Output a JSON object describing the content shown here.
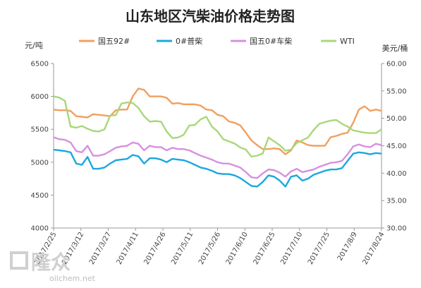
{
  "chart_data": {
    "type": "line",
    "title": "山东地区汽柴油价格走势图",
    "y_left_label": "元/吨",
    "y_right_label": "美元/桶",
    "y_left_range": [
      4000,
      6500
    ],
    "y_left_ticks": [
      "6500",
      "6000",
      "5500",
      "5000",
      "4500",
      "4000"
    ],
    "y_right_range": [
      30,
      60
    ],
    "y_right_ticks": [
      "60.00",
      "55.00",
      "50.00",
      "45.00",
      "40.00",
      "35.00",
      "30.00"
    ],
    "x_ticks": [
      "2017/2/25",
      "2017/3/12",
      "2017/3/27",
      "2017/4/11",
      "2017/4/26",
      "2017/5/11",
      "2017/5/26",
      "2017/6/10",
      "2017/6/25",
      "2017/7/10",
      "2017/7/25",
      "2017/8/9",
      "2017/8/24"
    ],
    "legend_position": "top",
    "grid": false,
    "series": [
      {
        "name": "国五92#",
        "axis": "left",
        "color": "#f0a060",
        "values": [
          5800,
          5790,
          5790,
          5780,
          5700,
          5690,
          5680,
          5730,
          5720,
          5710,
          5700,
          5790,
          5800,
          5800,
          6000,
          6120,
          6100,
          6000,
          6000,
          6000,
          5980,
          5890,
          5900,
          5880,
          5880,
          5880,
          5860,
          5800,
          5790,
          5720,
          5700,
          5620,
          5600,
          5560,
          5450,
          5330,
          5260,
          5200,
          5200,
          5210,
          5200,
          5120,
          5180,
          5330,
          5300,
          5260,
          5250,
          5250,
          5250,
          5380,
          5400,
          5430,
          5450,
          5600,
          5800,
          5850,
          5780,
          5800,
          5780
        ]
      },
      {
        "name": "0#普柴",
        "axis": "left",
        "color": "#1ca7e0",
        "values": [
          5190,
          5180,
          5170,
          5150,
          4980,
          4960,
          5080,
          4900,
          4900,
          4920,
          4980,
          5030,
          5040,
          5050,
          5110,
          5090,
          4980,
          5060,
          5060,
          5040,
          5000,
          5050,
          5040,
          5030,
          5000,
          4960,
          4920,
          4900,
          4870,
          4830,
          4820,
          4820,
          4800,
          4760,
          4700,
          4640,
          4630,
          4700,
          4800,
          4780,
          4720,
          4630,
          4780,
          4800,
          4720,
          4750,
          4810,
          4840,
          4870,
          4890,
          4890,
          4910,
          5020,
          5130,
          5150,
          5140,
          5120,
          5140,
          5130
        ]
      },
      {
        "name": "国五0#车柴",
        "axis": "left",
        "color": "#d890e0",
        "values": [
          5380,
          5350,
          5340,
          5300,
          5170,
          5150,
          5250,
          5100,
          5100,
          5120,
          5170,
          5220,
          5240,
          5250,
          5300,
          5280,
          5180,
          5250,
          5230,
          5230,
          5180,
          5220,
          5200,
          5200,
          5180,
          5140,
          5100,
          5070,
          5040,
          5000,
          4980,
          4980,
          4950,
          4920,
          4850,
          4770,
          4760,
          4830,
          4890,
          4880,
          4840,
          4780,
          4860,
          4900,
          4850,
          4870,
          4890,
          4930,
          4960,
          4990,
          5000,
          5020,
          5120,
          5240,
          5270,
          5240,
          5230,
          5280,
          5260
        ]
      },
      {
        "name": "WTI",
        "axis": "right",
        "color": "#a8d878",
        "values": [
          54.0,
          53.8,
          53.2,
          48.5,
          48.3,
          48.6,
          48.1,
          47.7,
          47.6,
          48.0,
          50.5,
          50.6,
          52.7,
          52.9,
          52.8,
          51.9,
          50.4,
          49.4,
          49.5,
          49.4,
          47.6,
          46.4,
          46.5,
          47.0,
          48.7,
          48.8,
          49.8,
          50.3,
          48.5,
          47.6,
          46.2,
          45.8,
          45.4,
          44.7,
          44.3,
          43.0,
          43.2,
          43.6,
          46.5,
          45.8,
          45.1,
          44.1,
          44.3,
          45.5,
          46.0,
          46.5,
          47.9,
          49.0,
          49.3,
          49.6,
          49.7,
          49.0,
          48.5,
          47.8,
          47.6,
          47.4,
          47.3,
          47.3,
          48.0
        ]
      }
    ]
  },
  "watermark": {
    "brand": "隆众",
    "site": "oilchem.net"
  }
}
